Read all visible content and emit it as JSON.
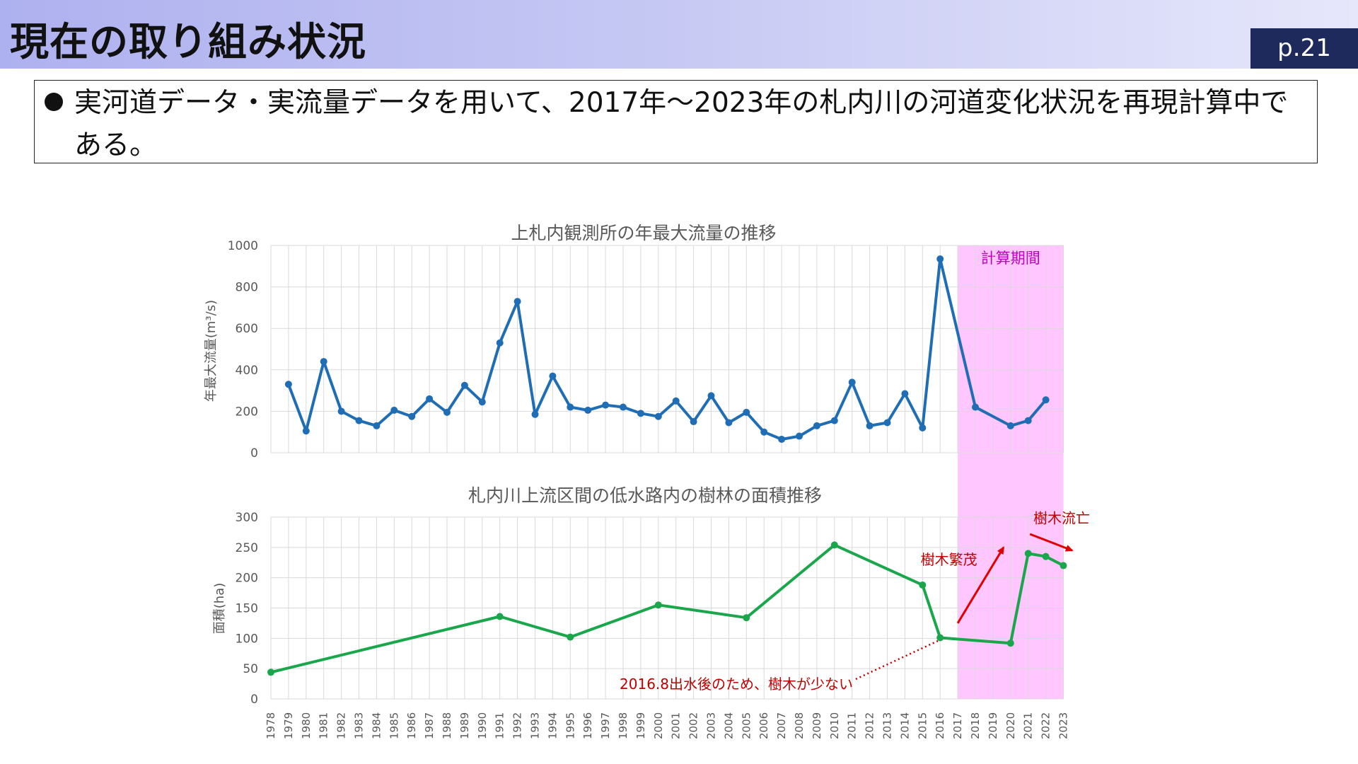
{
  "header": {
    "title": "現在の取り組み状況",
    "page": "p.21"
  },
  "bullet": {
    "text": "実河道データ・実流量データを用いて、2017年～2023年の札内川の河道変化状況を再現計算中である。"
  },
  "colors": {
    "header_bg": "#b8baf1",
    "page_badge": "#1f2a5c",
    "flow_series": "#1f6db4",
    "area_series": "#1aa64b",
    "highlight": "#ffc6ff",
    "annotation": "#c00000"
  },
  "chart_data": [
    {
      "type": "line",
      "title": "上札内観測所の年最大流量の推移",
      "ylabel": "年最大流量(m³/s)",
      "ylim": [
        0,
        1000
      ],
      "yticks": [
        0,
        200,
        400,
        600,
        800,
        1000
      ],
      "grid": true,
      "series": [
        {
          "color": "#1f6db4",
          "points": [
            [
              1979,
              330
            ],
            [
              1980,
              105
            ],
            [
              1981,
              440
            ],
            [
              1982,
              200
            ],
            [
              1983,
              155
            ],
            [
              1984,
              130
            ],
            [
              1985,
              205
            ],
            [
              1986,
              175
            ],
            [
              1987,
              260
            ],
            [
              1988,
              195
            ],
            [
              1989,
              325
            ],
            [
              1990,
              245
            ],
            [
              1991,
              530
            ],
            [
              1992,
              730
            ],
            [
              1993,
              185
            ],
            [
              1994,
              370
            ],
            [
              1995,
              220
            ],
            [
              1996,
              205
            ],
            [
              1997,
              230
            ],
            [
              1998,
              220
            ],
            [
              1999,
              190
            ],
            [
              2000,
              175
            ],
            [
              2001,
              250
            ],
            [
              2002,
              150
            ],
            [
              2003,
              275
            ],
            [
              2004,
              145
            ],
            [
              2005,
              195
            ],
            [
              2006,
              100
            ],
            [
              2007,
              65
            ],
            [
              2008,
              80
            ],
            [
              2009,
              130
            ],
            [
              2010,
              155
            ],
            [
              2011,
              340
            ],
            [
              2012,
              130
            ],
            [
              2013,
              145
            ],
            [
              2014,
              285
            ],
            [
              2015,
              120
            ],
            [
              2016,
              935
            ],
            [
              2018,
              220
            ],
            [
              2020,
              130
            ],
            [
              2021,
              155
            ],
            [
              2022,
              255
            ]
          ]
        }
      ],
      "highlight": {
        "label": "計算期間",
        "from": 2017,
        "to": 2023
      }
    },
    {
      "type": "line",
      "title": "札内川上流区間の低水路内の樹林の面積推移",
      "ylabel": "面積(ha)",
      "ylim": [
        0,
        300
      ],
      "yticks": [
        0,
        50,
        100,
        150,
        200,
        250,
        300
      ],
      "grid": true,
      "x_categories": [
        1978,
        1979,
        1980,
        1981,
        1982,
        1983,
        1984,
        1985,
        1986,
        1987,
        1988,
        1989,
        1990,
        1991,
        1992,
        1993,
        1994,
        1995,
        1996,
        1997,
        1998,
        1999,
        2000,
        2001,
        2002,
        2003,
        2004,
        2005,
        2006,
        2007,
        2008,
        2009,
        2010,
        2011,
        2012,
        2013,
        2014,
        2015,
        2016,
        2017,
        2018,
        2019,
        2020,
        2021,
        2022,
        2023
      ],
      "series": [
        {
          "color": "#1aa64b",
          "points": [
            [
              1978,
              44
            ],
            [
              1991,
              136
            ],
            [
              1995,
              102
            ],
            [
              2000,
              155
            ],
            [
              2005,
              134
            ],
            [
              2010,
              254
            ],
            [
              2015,
              188
            ],
            [
              2016,
              101
            ],
            [
              2020,
              92
            ],
            [
              2021,
              240
            ],
            [
              2022,
              235
            ],
            [
              2023,
              220
            ]
          ]
        }
      ],
      "annotations": [
        {
          "text": "2016.8出水後のため、樹木が少ない",
          "target": [
            2016,
            101
          ]
        },
        {
          "text": "樹木繁茂",
          "arrow_from": [
            2017,
            125
          ],
          "arrow_to": [
            2019.6,
            250
          ]
        },
        {
          "text": "樹木流亡",
          "arrow_from": [
            2021.1,
            272
          ],
          "arrow_to": [
            2023.5,
            245
          ]
        }
      ]
    }
  ]
}
